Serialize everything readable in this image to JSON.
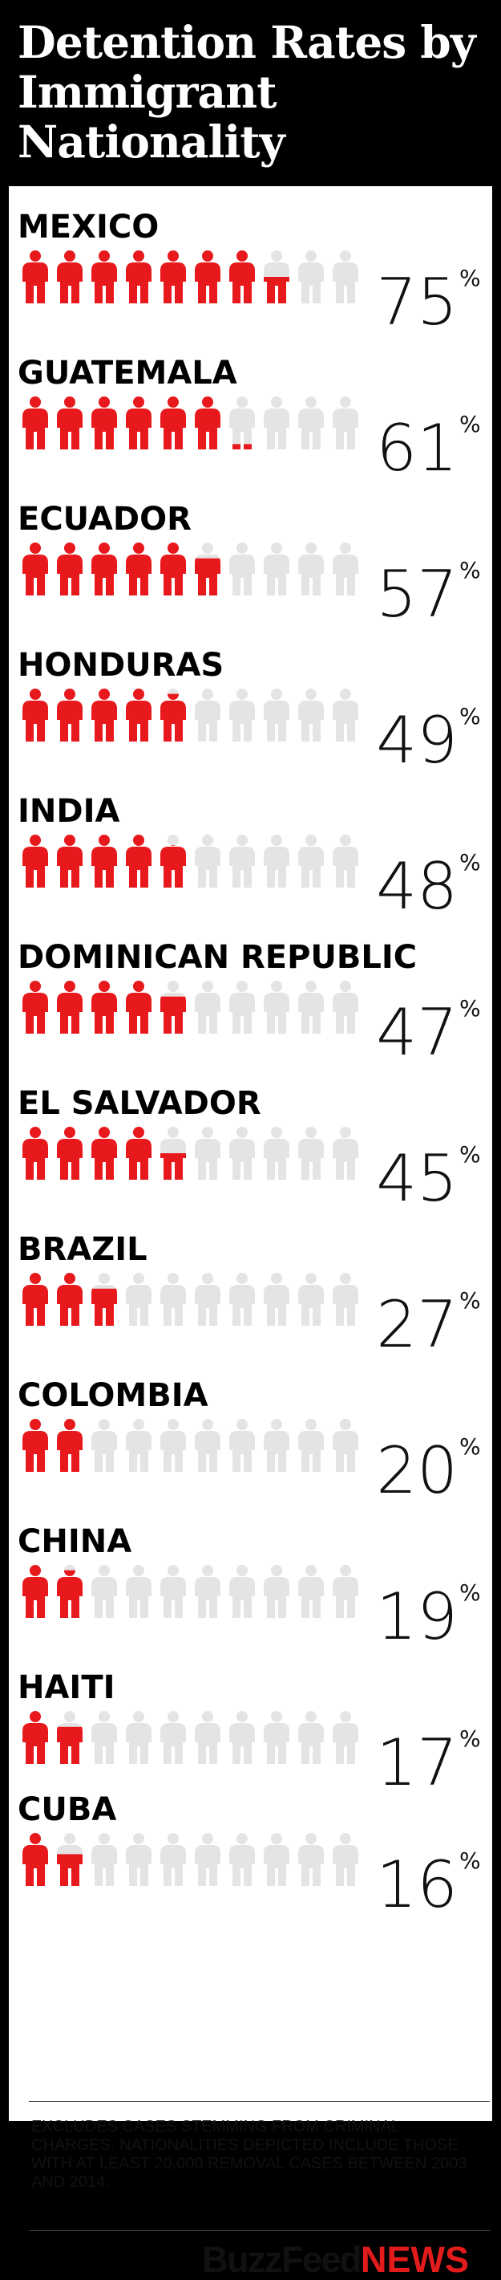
{
  "title": "Detention Rates by Immigrant Nationality",
  "footnote": "Excludes cases stemming from criminal charges. Nationalities depicted include those with at least 20,000 removal cases between 2003 and 2014.",
  "brand": {
    "part1": "BuzzFeed",
    "part2": "NEWS"
  },
  "colors": {
    "background": "#000000",
    "panel": "#ffffff",
    "filled": "#e8191d",
    "empty": "#e4e4e4",
    "brand_red": "#e21c1c"
  },
  "icon": "person-icon",
  "chart_data": {
    "type": "bar",
    "units_per_icon": 10,
    "icons_per_row": 10,
    "value_suffix": "%",
    "categories": [
      "MEXICO",
      "GUATEMALA",
      "ECUADOR",
      "HONDURAS",
      "INDIA",
      "DOMINICAN REPUBLIC",
      "EL SALVADOR",
      "BRAZIL",
      "COLOMBIA",
      "CHINA",
      "HAITI",
      "CUBA"
    ],
    "values": [
      75,
      61,
      57,
      49,
      48,
      47,
      45,
      27,
      20,
      19,
      17,
      16
    ]
  }
}
